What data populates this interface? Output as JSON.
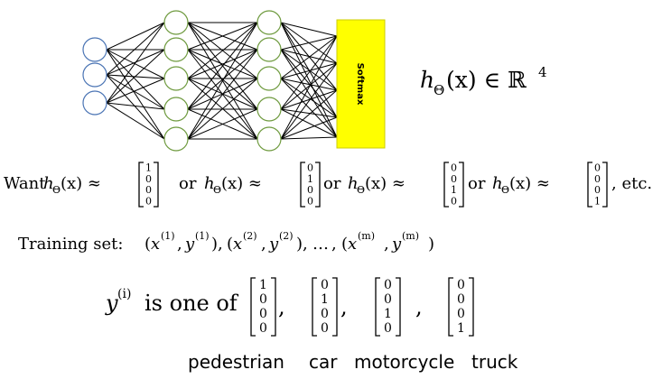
{
  "network": {
    "layers": [
      {
        "count": 3,
        "color": "#4a74b4"
      },
      {
        "count": 5,
        "color": "#6e9a3e"
      },
      {
        "count": 5,
        "color": "#6e9a3e"
      }
    ],
    "softmax": {
      "label": "Softmax",
      "fill": "#ffff00"
    },
    "output_label": {
      "h": "h",
      "sub": "Θ",
      "args": "(x) ∈ ℝ",
      "sup": "4"
    }
  },
  "want": {
    "prefix": "Want",
    "h": "h",
    "sub": "Θ",
    "args": "(x) ≈",
    "joiner": "or",
    "vectors": [
      [
        "1",
        "0",
        "0",
        "0"
      ],
      [
        "0",
        "1",
        "0",
        "0"
      ],
      [
        "0",
        "0",
        "1",
        "0"
      ],
      [
        "0",
        "0",
        "0",
        "1"
      ]
    ],
    "suffix": ", etc."
  },
  "training": {
    "label": "Training set:",
    "x": "x",
    "y": "y",
    "sup1": "(1)",
    "sup2": "(2)",
    "supm": "(m)",
    "ellipsis": "…"
  },
  "yline": {
    "y": "y",
    "sup": "(i)",
    "text": "is one of",
    "vectors": [
      [
        "1",
        "0",
        "0",
        "0"
      ],
      [
        "0",
        "1",
        "0",
        "0"
      ],
      [
        "0",
        "0",
        "1",
        "0"
      ],
      [
        "0",
        "0",
        "0",
        "1"
      ]
    ]
  },
  "classes": [
    "pedestrian",
    "car",
    "motorcycle",
    "truck"
  ]
}
